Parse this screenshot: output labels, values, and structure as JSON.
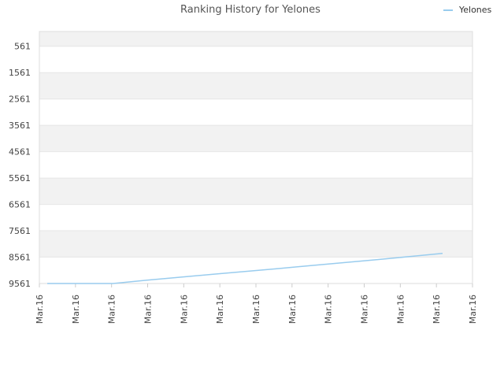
{
  "chart_data": {
    "type": "line",
    "title": "Ranking History for Yelones",
    "xlabel": "",
    "ylabel": "",
    "y_inverted": true,
    "ylim": [
      9561,
      1
    ],
    "y_ticks": [
      561,
      1561,
      2561,
      3561,
      4561,
      5561,
      6561,
      7561,
      8561,
      9561
    ],
    "x_tick_labels": [
      "Mar.16",
      "Mar.16",
      "Mar.16",
      "Mar.16",
      "Mar.16",
      "Mar.16",
      "Mar.16",
      "Mar.16",
      "Mar.16",
      "Mar.16",
      "Mar.16",
      "Mar.16",
      "Mar.16"
    ],
    "grid": true,
    "band_colors": [
      "#f2f2f2",
      "#ffffff"
    ],
    "legend_position": "top-right",
    "series": [
      {
        "name": "Yelones",
        "color": "#99ccee",
        "values": [
          9561,
          9561,
          9561,
          9440,
          9325,
          9215,
          9105,
          8995,
          8880,
          8770,
          8655,
          8540,
          8420
        ]
      }
    ]
  }
}
